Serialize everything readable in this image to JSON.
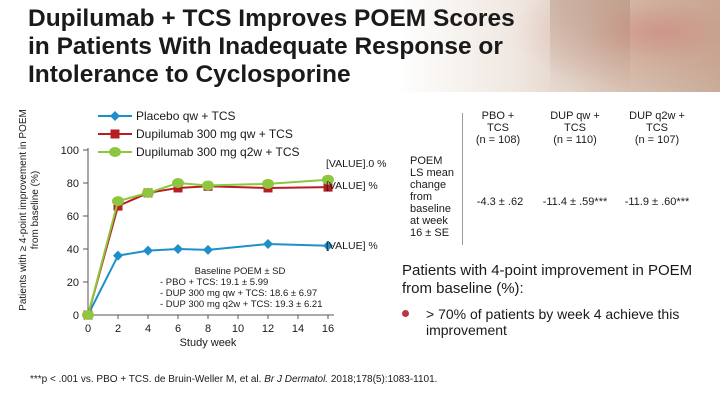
{
  "title_lines": [
    "Dupilumab + TCS Improves POEM Scores",
    "in Patients With Inadequate Response or",
    "Intolerance to Cyclosporine"
  ],
  "colors": {
    "placebo": "#1f8fc9",
    "qw": "#b71e23",
    "q2w": "#8ec63f",
    "bullet": "#b9383d"
  },
  "legend": [
    "Placebo qw + TCS",
    "Dupilumab 300 mg qw + TCS",
    "Dupilumab 300 mg q2w + TCS"
  ],
  "annotations": {
    "top": "[VALUE].0 %",
    "top2": "[VALUE] %",
    "placebo_end": "[VALUE] %",
    "baseline_title": "Baseline POEM ± SD",
    "baseline_lines": [
      "- PBO + TCS: 19.1 ± 5.99",
      "- DUP 300 mg qw + TCS: 18.6 ± 6.97",
      "- DUP 300 mg q2w + TCS: 19.3 ± 6.21"
    ]
  },
  "table": {
    "columns": [
      [
        "PBO +",
        "TCS",
        "(n = 108)"
      ],
      [
        "DUP qw +",
        "TCS",
        "(n = 110)"
      ],
      [
        "DUP q2w +",
        "TCS",
        "(n = 107)"
      ]
    ],
    "row_label": [
      "POEM",
      "LS mean",
      "change",
      "from",
      "baseline",
      "at week",
      "16 ± SE"
    ],
    "values": [
      "-4.3 ± .62",
      "-11.4 ± .59***",
      "-11.9 ± .60***"
    ]
  },
  "pct_heading": "Patients with 4-point improvement in POEM from baseline (%):",
  "bullet": "> 70% of patients by week 4 achieve this improvement",
  "footnote": {
    "prefix": "***p < .001 vs. PBO + TCS. de Bruin-Weller M, et al. ",
    "journal": "Br J Dermatol.",
    "suffix": " 2018;178(5):1083-1101."
  },
  "chart_data": {
    "type": "line",
    "xlabel": "Study week",
    "ylabel": "Patients with ≥ 4-point improvement in POEM from baseline (%)",
    "xlim": [
      0,
      16
    ],
    "ylim": [
      0,
      100
    ],
    "x_ticks": [
      0,
      2,
      4,
      6,
      8,
      10,
      12,
      14,
      16
    ],
    "y_ticks": [
      0,
      20,
      40,
      60,
      80,
      100
    ],
    "series": [
      {
        "name": "Placebo qw + TCS",
        "x": [
          0,
          2,
          4,
          6,
          8,
          12,
          16
        ],
        "y": [
          0,
          36,
          39,
          40,
          39.5,
          43,
          42
        ]
      },
      {
        "name": "Dupilumab 300 mg qw + TCS",
        "x": [
          0,
          2,
          4,
          6,
          8,
          12,
          16
        ],
        "y": [
          0,
          66,
          74,
          77,
          78,
          77,
          77.5
        ]
      },
      {
        "name": "Dupilumab 300 mg q2w + TCS",
        "x": [
          0,
          2,
          4,
          6,
          8,
          12,
          16
        ],
        "y": [
          0,
          69,
          74,
          80,
          78.5,
          79.5,
          82
        ]
      }
    ]
  }
}
